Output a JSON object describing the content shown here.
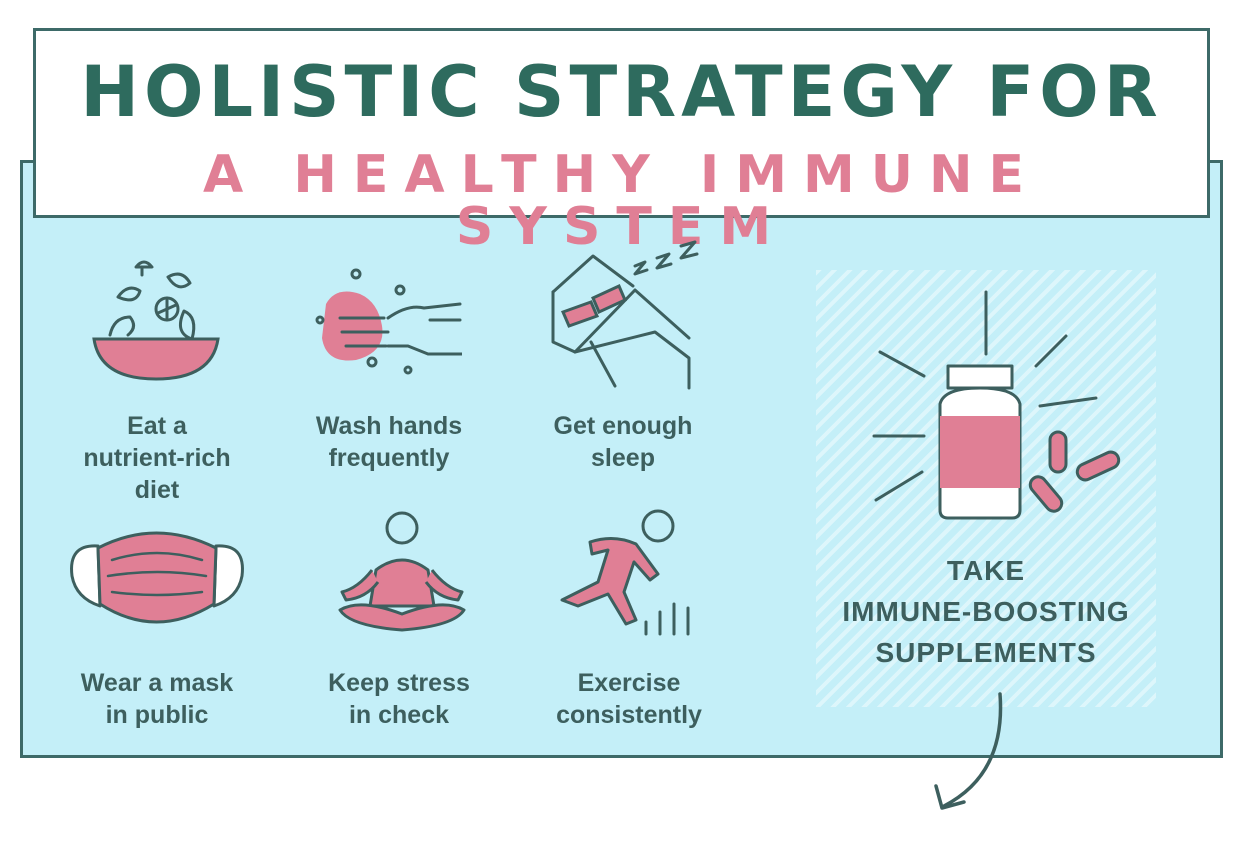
{
  "title": {
    "line1": "HOLISTIC STRATEGY FOR",
    "line2": "A HEALTHY IMMUNE SYSTEM"
  },
  "colors": {
    "teal": "#3d6a68",
    "pink": "#e07f95",
    "panel": "#c4eff8"
  },
  "tips": [
    {
      "label": "Eat a\nnutrient-rich\ndiet",
      "icon": "salad-bowl-icon"
    },
    {
      "label": "Wash hands\nfrequently",
      "icon": "washing-hands-icon"
    },
    {
      "label": "Get enough\nsleep",
      "icon": "bed-sleep-icon"
    },
    {
      "label": "Wear a mask\nin public",
      "icon": "face-mask-icon"
    },
    {
      "label": "Keep stress\nin check",
      "icon": "meditation-icon"
    },
    {
      "label": "Exercise\nconsistently",
      "icon": "running-person-icon"
    }
  ],
  "highlight": {
    "label": "TAKE\nIMMUNE-BOOSTING\nSUPPLEMENTS",
    "icon": "supplement-bottle-icon"
  }
}
